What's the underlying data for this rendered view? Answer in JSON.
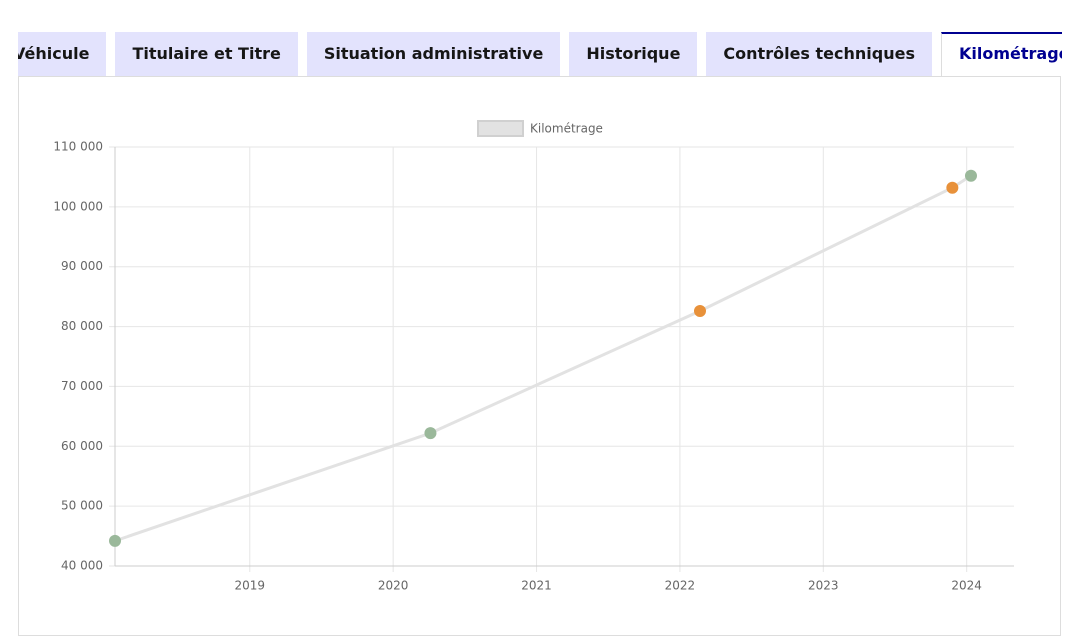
{
  "tabs": [
    "Véhicule",
    "Titulaire et Titre",
    "Situation administrative",
    "Historique",
    "Contrôles techniques",
    "Kilométrage"
  ],
  "active_tab": 5,
  "chart_data": {
    "type": "line",
    "series": [
      {
        "name": "Kilométrage",
        "color": "#e2e2e2",
        "x": [
          2018.06,
          2020.26,
          2022.14,
          2023.9,
          2024.03
        ],
        "values": [
          44200,
          62200,
          82600,
          103200,
          105200
        ],
        "point_colors": [
          "#9ab89a",
          "#9ab89a",
          "#e8913a",
          "#e8913a",
          "#9ab89a"
        ]
      }
    ],
    "xlim": [
      2018.06,
      2024.33
    ],
    "xticks": [
      2019,
      2020,
      2021,
      2022,
      2023,
      2024
    ],
    "ylim": [
      40000,
      110000
    ],
    "yticks": [
      {
        "value": 40000,
        "label": "40 000"
      },
      {
        "value": 50000,
        "label": "50 000"
      },
      {
        "value": 60000,
        "label": "60 000"
      },
      {
        "value": 70000,
        "label": "70 000"
      },
      {
        "value": 80000,
        "label": "80 000"
      },
      {
        "value": 90000,
        "label": "90 000"
      },
      {
        "value": 100000,
        "label": "100 000"
      },
      {
        "value": 110000,
        "label": "110 000"
      }
    ],
    "grid": true,
    "legend": "top"
  }
}
